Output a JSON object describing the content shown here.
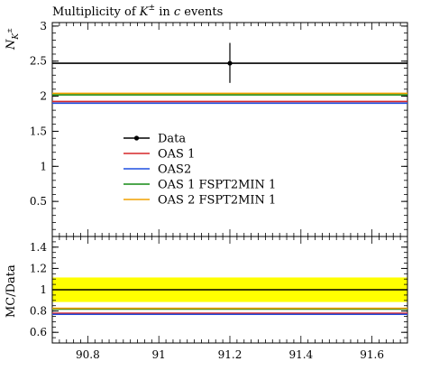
{
  "chart_data": [
    {
      "type": "line",
      "title": "Multiplicity of K± in c events",
      "title_prefix": "Multiplicity of",
      "title_particle": "K",
      "title_particle_sup": "±",
      "title_mid": "in",
      "title_quark": "c",
      "title_suffix": "events",
      "ylabel": "N",
      "ylabel_sub": "K",
      "ylabel_subsup": "±",
      "xlim": [
        90.7,
        91.7
      ],
      "ylim": [
        0,
        3.05
      ],
      "y_ticks": [
        0.5,
        1,
        1.5,
        2,
        2.5,
        3
      ],
      "y_tick_labels": [
        "0.5",
        "1",
        "1.5",
        "2",
        "2.5",
        "3"
      ],
      "data": {
        "name": "Data",
        "x": 91.2,
        "y": 2.47,
        "yerr_low": 2.19,
        "yerr_high": 2.76,
        "color": "#000000"
      },
      "series": [
        {
          "name": "OAS 1",
          "value": 1.925,
          "color": "#d62728"
        },
        {
          "name": "OAS2",
          "value": 1.9,
          "color": "#1f4ee0"
        },
        {
          "name": "OAS 1 FSPT2MIN 1",
          "value": 2.02,
          "color": "#138a13"
        },
        {
          "name": "OAS 2 FSPT2MIN 1",
          "value": 2.04,
          "color": "#f0a000"
        }
      ],
      "legend_placement": "center-left"
    },
    {
      "type": "line",
      "ylabel": "MC/Data",
      "xlim": [
        90.7,
        91.7
      ],
      "ylim": [
        0.5,
        1.5
      ],
      "y_ticks": [
        0.6,
        0.8,
        1,
        1.2,
        1.4
      ],
      "y_tick_labels": [
        "0.6",
        "0.8",
        "1",
        "1.2",
        "1.4"
      ],
      "x_ticks": [
        90.8,
        91,
        91.2,
        91.4,
        91.6
      ],
      "x_tick_labels": [
        "90.8",
        "91",
        "91.2",
        "91.4",
        "91.6"
      ],
      "band": {
        "low": 0.885,
        "high": 1.115,
        "color": "#ffff00"
      },
      "reference": 1,
      "series": [
        {
          "name": "OAS 1",
          "value": 0.779,
          "color": "#d62728"
        },
        {
          "name": "OAS2",
          "value": 0.769,
          "color": "#1f4ee0"
        },
        {
          "name": "OAS 1 FSPT2MIN 1",
          "value": 0.818,
          "color": "#138a13"
        },
        {
          "name": "OAS 2 FSPT2MIN 1",
          "value": 0.826,
          "color": "#f0a000"
        }
      ]
    }
  ]
}
